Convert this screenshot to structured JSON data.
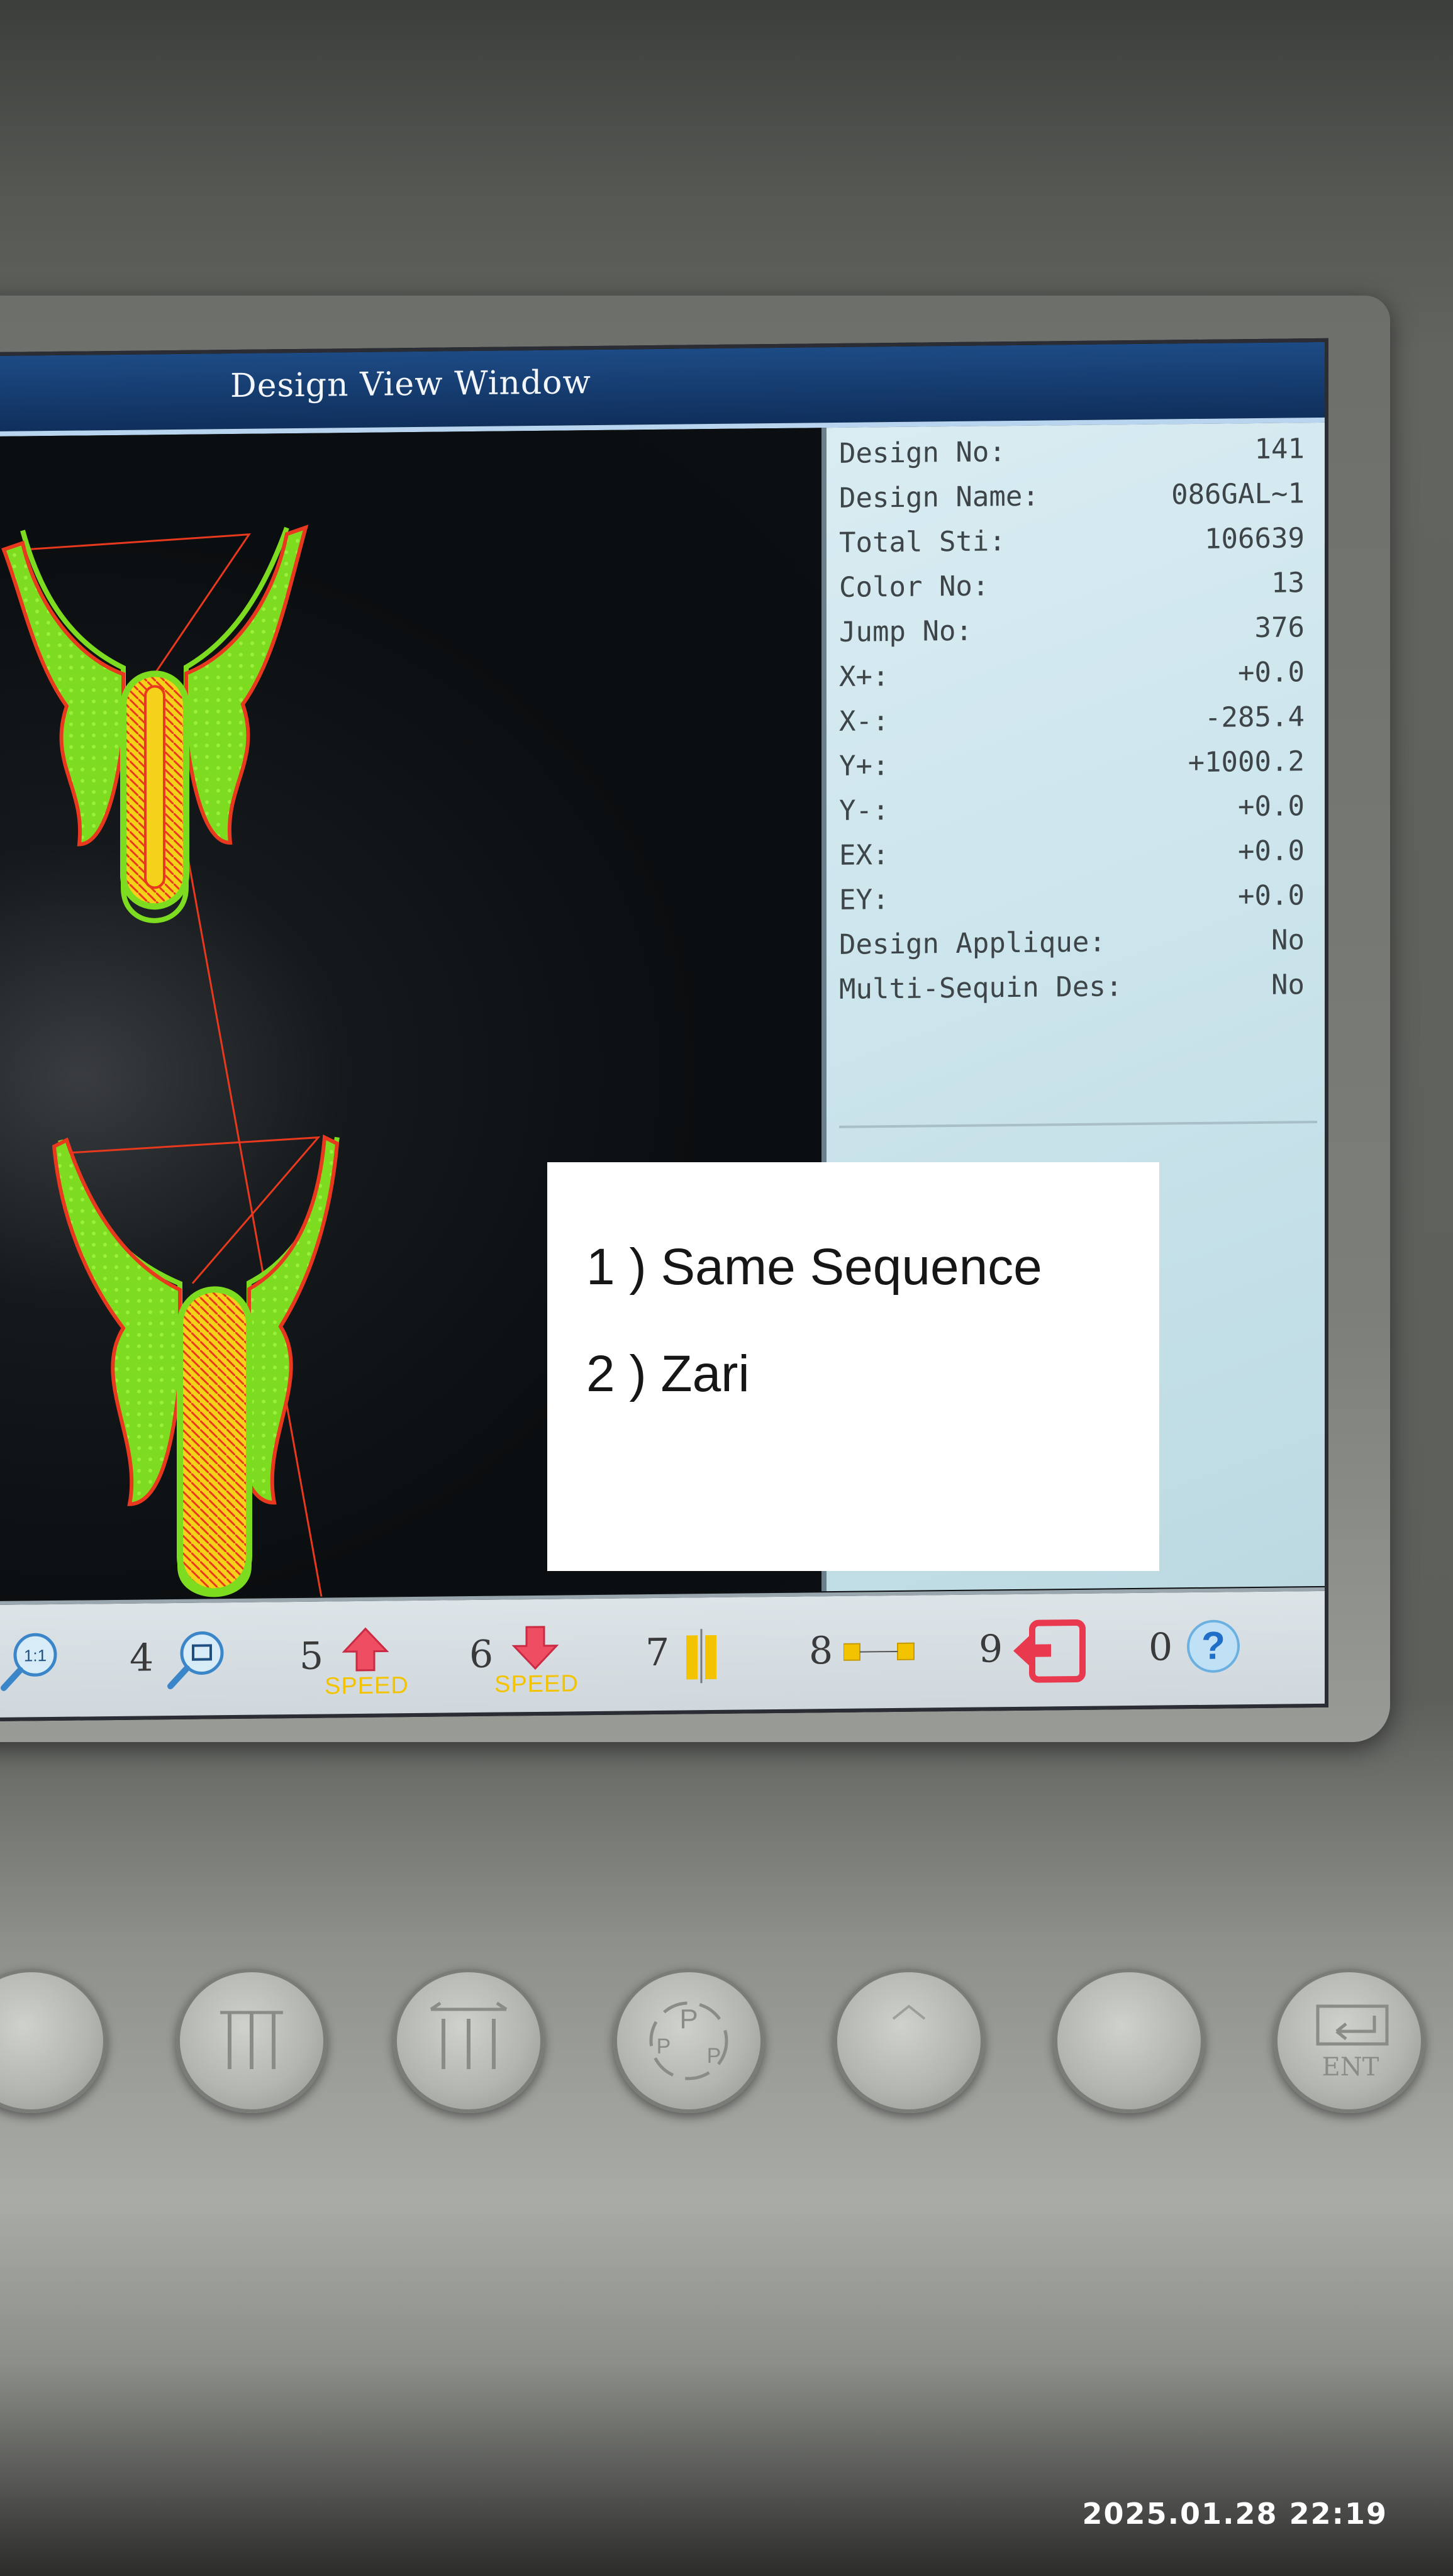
{
  "window": {
    "title": "Design View Window"
  },
  "design_info": {
    "rows": [
      {
        "label": "Design No:",
        "value": "141"
      },
      {
        "label": "Design Name:",
        "value": "086GAL~1"
      },
      {
        "label": "Total Sti:",
        "value": "106639"
      },
      {
        "label": "Color No:",
        "value": "13"
      },
      {
        "label": "Jump No:",
        "value": "376"
      },
      {
        "label": "X+:",
        "value": "+0.0"
      },
      {
        "label": "X-:",
        "value": "-285.4"
      },
      {
        "label": "Y+:",
        "value": "+1000.2"
      },
      {
        "label": "Y-:",
        "value": "+0.0"
      },
      {
        "label": "EX:",
        "value": "+0.0"
      },
      {
        "label": "EY:",
        "value": "+0.0"
      },
      {
        "label": "Design Applique:",
        "value": "No"
      },
      {
        "label": "Multi-Sequin Des:",
        "value": "No"
      }
    ]
  },
  "toolbar": {
    "tools": [
      {
        "num": "",
        "icon": "zoom-1-1-icon",
        "sub": "",
        "icon_text": "1:1"
      },
      {
        "num": "4",
        "icon": "zoom-window-icon",
        "sub": ""
      },
      {
        "num": "5",
        "icon": "speed-up-icon",
        "sub": "SPEED"
      },
      {
        "num": "6",
        "icon": "speed-down-icon",
        "sub": "SPEED"
      },
      {
        "num": "7",
        "icon": "needle-bar-icon",
        "sub": ""
      },
      {
        "num": "8",
        "icon": "frame-trace-icon",
        "sub": ""
      },
      {
        "num": "9",
        "icon": "return-origin-icon",
        "sub": ""
      },
      {
        "num": "0",
        "icon": "help-icon",
        "sub": ""
      }
    ]
  },
  "hardware_buttons": [
    {
      "icon": "button-blank-icon"
    },
    {
      "icon": "needle-select-icon"
    },
    {
      "icon": "needle-move-icon"
    },
    {
      "icon": "parameter-icon"
    },
    {
      "icon": "mode-icon"
    },
    {
      "icon": "button-blank-icon"
    },
    {
      "icon": "enter-icon",
      "label": "ENT"
    }
  ],
  "overlay": {
    "line1": "1 ) Same Sequence",
    "line2": "2 ) Zari"
  },
  "timestamp": "2025.01.28 22:19",
  "colors": {
    "stitch_green": "#7ddc1f",
    "stitch_yellow": "#f5d21a",
    "stitch_red": "#e8391e",
    "panel_bg": "#d3e8ee",
    "title_blue": "#17427a"
  }
}
